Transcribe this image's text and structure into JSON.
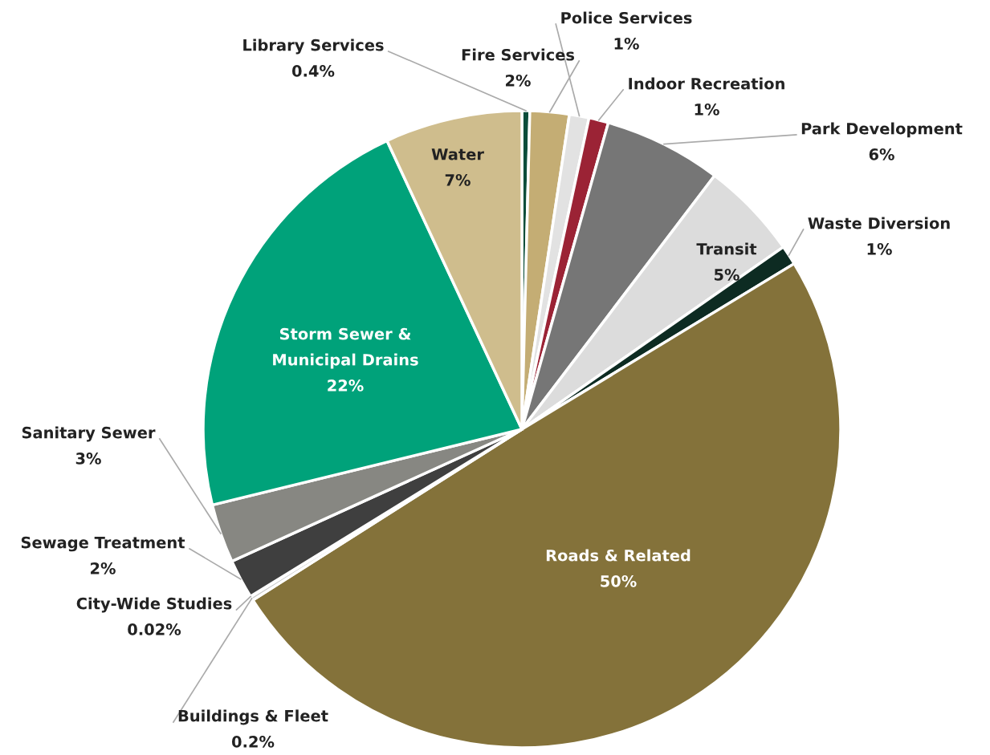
{
  "chart_data": {
    "type": "pie",
    "categories": [
      "Library Services",
      "Fire Services",
      "Police Services",
      "Indoor Recreation",
      "Park Development",
      "Transit",
      "Waste Diversion",
      "Roads & Related",
      "Buildings & Fleet",
      "City-Wide Studies",
      "Sewage Treatment",
      "Sanitary Sewer",
      "Storm Sewer &\nMunicipal Drains",
      "Water"
    ],
    "values": [
      0.4,
      2,
      1,
      1,
      6,
      5,
      1,
      50,
      0.2,
      0.02,
      2,
      3,
      22,
      7
    ],
    "colors": [
      "#0b4d3a",
      "#c4ad74",
      "#e2e2e2",
      "#9b2335",
      "#767676",
      "#dcdcdc",
      "#0d2b22",
      "#84723a",
      "#c9c9c9",
      "#4a4a4a",
      "#3f3f3f",
      "#878782",
      "#00a27a",
      "#cfbd8d"
    ],
    "value_labels": [
      "0.4%",
      "2%",
      "1%",
      "1%",
      "6%",
      "5%",
      "1%",
      "50%",
      "0.2%",
      "0.02%",
      "2%",
      "3%",
      "22%",
      "7%"
    ]
  }
}
